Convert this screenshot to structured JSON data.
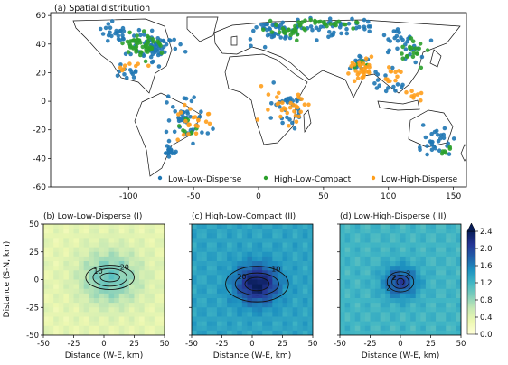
{
  "chart_data": [
    {
      "type": "scatter",
      "title": "(a) Spatial distribution",
      "xlim": [
        -160,
        160
      ],
      "ylim": [
        -60,
        62
      ],
      "x_ticks": [
        -100,
        -50,
        0,
        50,
        100,
        150
      ],
      "y_ticks": [
        -60,
        -40,
        -20,
        0,
        20,
        40,
        60
      ],
      "legend_position": "bottom-right",
      "series": [
        {
          "name": "Low-Low-Disperse",
          "color": "#1f77b4",
          "clusters": [
            {
              "lon": -80,
              "lat": 38,
              "spread_lon": 14,
              "spread_lat": 9,
              "count": 60
            },
            {
              "lon": -110,
              "lat": 48,
              "spread_lon": 12,
              "spread_lat": 6,
              "count": 25
            },
            {
              "lon": -100,
              "lat": 22,
              "spread_lon": 8,
              "spread_lat": 5,
              "count": 12
            },
            {
              "lon": -55,
              "lat": -12,
              "spread_lon": 12,
              "spread_lat": 14,
              "count": 45
            },
            {
              "lon": -68,
              "lat": -36,
              "spread_lon": 4,
              "spread_lat": 6,
              "count": 15
            },
            {
              "lon": 10,
              "lat": 49,
              "spread_lon": 14,
              "spread_lat": 6,
              "count": 40
            },
            {
              "lon": 60,
              "lat": 52,
              "spread_lon": 30,
              "spread_lat": 5,
              "count": 45
            },
            {
              "lon": 110,
              "lat": 40,
              "spread_lon": 14,
              "spread_lat": 10,
              "count": 30
            },
            {
              "lon": 20,
              "lat": -5,
              "spread_lon": 12,
              "spread_lat": 14,
              "count": 30
            },
            {
              "lon": 135,
              "lat": -28,
              "spread_lon": 12,
              "spread_lat": 8,
              "count": 28
            },
            {
              "lon": 100,
              "lat": 12,
              "spread_lon": 10,
              "spread_lat": 8,
              "count": 15
            },
            {
              "lon": 78,
              "lat": 25,
              "spread_lon": 8,
              "spread_lat": 6,
              "count": 15
            }
          ]
        },
        {
          "name": "High-Low-Compact",
          "color": "#2ca02c",
          "clusters": [
            {
              "lon": -92,
              "lat": 40,
              "spread_lon": 12,
              "spread_lat": 6,
              "count": 55
            },
            {
              "lon": 25,
              "lat": 50,
              "spread_lon": 16,
              "spread_lat": 4,
              "count": 25
            },
            {
              "lon": 55,
              "lat": 55,
              "spread_lon": 22,
              "spread_lat": 3,
              "count": 25
            },
            {
              "lon": 118,
              "lat": 35,
              "spread_lon": 8,
              "spread_lat": 6,
              "count": 20
            },
            {
              "lon": 80,
              "lat": 25,
              "spread_lon": 6,
              "spread_lat": 4,
              "count": 8
            },
            {
              "lon": -55,
              "lat": -20,
              "spread_lon": 8,
              "spread_lat": 6,
              "count": 8
            },
            {
              "lon": 145,
              "lat": -33,
              "spread_lon": 4,
              "spread_lat": 4,
              "count": 6
            }
          ]
        },
        {
          "name": "Low-High-Disperse",
          "color": "#ff9f1c",
          "clusters": [
            {
              "lon": 78,
              "lat": 22,
              "spread_lon": 8,
              "spread_lat": 6,
              "count": 30
            },
            {
              "lon": 20,
              "lat": 0,
              "spread_lon": 14,
              "spread_lat": 14,
              "count": 30
            },
            {
              "lon": -50,
              "lat": -15,
              "spread_lon": 10,
              "spread_lat": 10,
              "count": 22
            },
            {
              "lon": 105,
              "lat": 20,
              "spread_lon": 8,
              "spread_lat": 6,
              "count": 12
            },
            {
              "lon": -100,
              "lat": 25,
              "spread_lon": 8,
              "spread_lat": 5,
              "count": 8
            },
            {
              "lon": 120,
              "lat": 5,
              "spread_lon": 8,
              "spread_lat": 5,
              "count": 8
            }
          ]
        }
      ]
    },
    {
      "type": "heatmap",
      "title": "(b) Low-Low-Disperse (I)",
      "xlabel": "Distance (W-E, km)",
      "ylabel": "Distance (S-N, km)",
      "xlim": [
        -50,
        50
      ],
      "ylim": [
        -50,
        50
      ],
      "x_ticks": [
        -50,
        -25,
        0,
        25,
        50
      ],
      "y_ticks": [
        -50,
        -25,
        0,
        25,
        50
      ],
      "field": {
        "background": 0.35,
        "peak": 1.0,
        "spread_km": 18
      },
      "contour_levels": [
        10,
        20,
        30
      ],
      "contour_labels": [
        "10",
        "20"
      ],
      "contour_center_km": [
        5,
        2
      ],
      "contour_radii_km": [
        [
          20,
          11
        ],
        [
          14,
          8
        ],
        [
          8,
          4
        ]
      ]
    },
    {
      "type": "heatmap",
      "title": "(c) High-Low-Compact (II)",
      "xlabel": "Distance (W-E, km)",
      "xlim": [
        -50,
        50
      ],
      "ylim": [
        -50,
        50
      ],
      "x_ticks": [
        -50,
        -25,
        0,
        25,
        50
      ],
      "field": {
        "background": 1.35,
        "peak": 2.4,
        "spread_km": 12
      },
      "contour_levels": [
        10,
        20,
        30
      ],
      "contour_labels": [
        "20",
        "10"
      ],
      "contour_center_km": [
        4,
        -4
      ],
      "contour_radii_km": [
        [
          26,
          16
        ],
        [
          18,
          10
        ],
        [
          10,
          6
        ]
      ]
    },
    {
      "type": "heatmap",
      "title": "(d) Low-High-Disperse (III)",
      "xlabel": "Distance (W-E, km)",
      "xlim": [
        -50,
        50
      ],
      "ylim": [
        -50,
        50
      ],
      "x_ticks": [
        -50,
        -25,
        0,
        25,
        50
      ],
      "field": {
        "background": 1.2,
        "peak": 2.0,
        "spread_km": 10
      },
      "contour_levels": [
        1,
        2,
        3
      ],
      "contour_labels": [
        "2",
        "2",
        "2"
      ],
      "contour_center_km": [
        0,
        -2
      ],
      "contour_radii_km": [
        [
          11,
          9
        ],
        [
          7,
          6
        ],
        [
          3,
          3
        ]
      ]
    },
    {
      "type": "colorbar",
      "range": [
        0.0,
        2.4
      ],
      "ticks": [
        "0.0",
        "0.4",
        "0.8",
        "1.2",
        "1.6",
        "2.0",
        "2.4"
      ],
      "colors": [
        "#ffffd9",
        "#edf8b1",
        "#c7e9b4",
        "#7fcdbb",
        "#41b6c4",
        "#1d91c0",
        "#225ea8",
        "#253494",
        "#081d58"
      ]
    }
  ]
}
